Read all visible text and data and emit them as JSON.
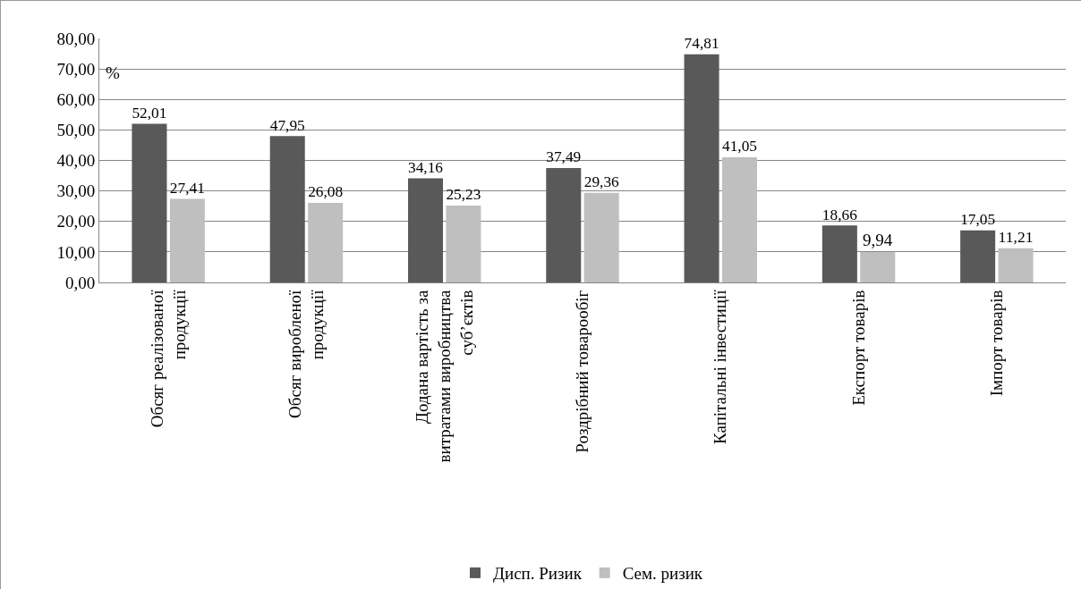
{
  "chart_data": {
    "type": "bar",
    "ylabel": "%",
    "categories": [
      "Обсяг реалізованої продукції",
      "Обсяг виробленої продукції",
      "Додана вартість за витратами виробництва суб’єктів",
      "Роздрібний товарообіг",
      "Капітальні інвестиції",
      "Експорт товарів",
      "Імпорт товарів"
    ],
    "series": [
      {
        "name": "Дисп. Ризик",
        "color": "#595959",
        "values": [
          52.01,
          47.95,
          34.16,
          37.49,
          74.81,
          18.66,
          17.05
        ],
        "value_labels": [
          "52,01",
          "47,95",
          "34,16",
          "37,49",
          "74,81",
          "18,66",
          "17,05"
        ]
      },
      {
        "name": "Сем. ризик",
        "color": "#bfbfbf",
        "values": [
          27.41,
          26.08,
          25.23,
          29.36,
          41.05,
          9.94,
          11.21
        ],
        "value_labels": [
          "27,41",
          "26,08",
          "25,23",
          "29,36",
          "41,05",
          "9,94",
          "11,21"
        ]
      }
    ],
    "ylim": [
      0,
      80
    ],
    "yticks": [
      {
        "value": 0,
        "label": "0,00"
      },
      {
        "value": 10,
        "label": "10,00"
      },
      {
        "value": 20,
        "label": "20,00"
      },
      {
        "value": 30,
        "label": "30,00"
      },
      {
        "value": 40,
        "label": "40,00"
      },
      {
        "value": 50,
        "label": "50,00"
      },
      {
        "value": 60,
        "label": "60,00"
      },
      {
        "value": 70,
        "label": "70,00"
      },
      {
        "value": 80,
        "label": "80,00"
      }
    ],
    "grid": "y",
    "legend": "bottom"
  }
}
